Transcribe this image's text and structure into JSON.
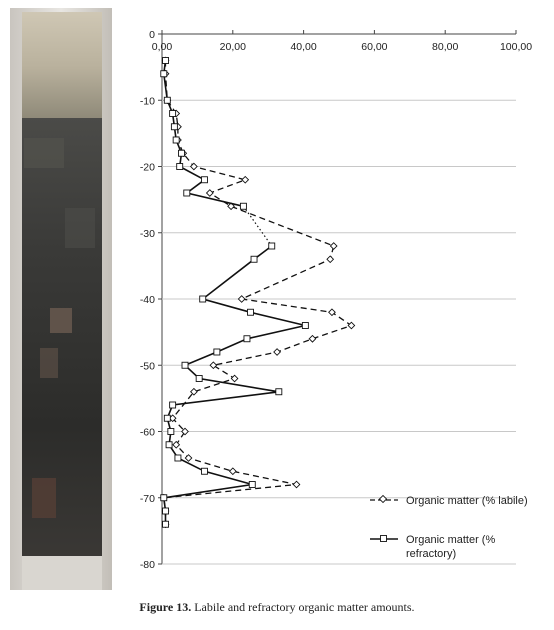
{
  "figure": {
    "caption_label": "Figure 13.",
    "caption_text": " Labile and refractory organic matter amounts."
  },
  "chart_data": {
    "type": "line",
    "title": "",
    "xlabel": "",
    "ylabel": "",
    "x_axis_position": "top",
    "xlim": [
      0,
      100
    ],
    "ylim": [
      -80,
      0
    ],
    "x_ticks": [
      "0,00",
      "20,00",
      "40,00",
      "60,00",
      "80,00",
      "100,00"
    ],
    "y_ticks": [
      "0",
      "-10",
      "-20",
      "-30",
      "-40",
      "-50",
      "-60",
      "-70",
      "-80"
    ],
    "grid": "horizontal",
    "legend_position": "right-bottom",
    "series": [
      {
        "name": "Organic matter (% labile)",
        "line_style": "dashed",
        "marker": "diamond",
        "points": [
          [
            1,
            -4
          ],
          [
            1,
            -6
          ],
          [
            1.5,
            -10
          ],
          [
            4,
            -12
          ],
          [
            4.5,
            -14
          ],
          [
            4.5,
            -16
          ],
          [
            6,
            -18
          ],
          [
            9,
            -20
          ],
          [
            23.5,
            -22
          ],
          [
            13.5,
            -24
          ],
          [
            19.5,
            -26
          ],
          [
            48.5,
            -32
          ],
          [
            47.5,
            -34
          ],
          [
            22.5,
            -40
          ],
          [
            48,
            -42
          ],
          [
            53.5,
            -44
          ],
          [
            42.5,
            -46
          ],
          [
            32.5,
            -48
          ],
          [
            14.5,
            -50
          ],
          [
            20.5,
            -52
          ],
          [
            9,
            -54
          ],
          [
            3,
            -58
          ],
          [
            6.5,
            -60
          ],
          [
            4,
            -62
          ],
          [
            7.5,
            -64
          ],
          [
            20,
            -66
          ],
          [
            38,
            -68
          ],
          [
            0.5,
            -70
          ],
          [
            1,
            -72
          ],
          [
            1,
            -74
          ]
        ]
      },
      {
        "name": "Organic matter (% refractory)",
        "line_style": "solid",
        "marker": "square",
        "points": [
          [
            1,
            -4
          ],
          [
            0.5,
            -6
          ],
          [
            1.5,
            -10
          ],
          [
            3,
            -12
          ],
          [
            3.5,
            -14
          ],
          [
            4,
            -16
          ],
          [
            5.5,
            -18
          ],
          [
            5,
            -20
          ],
          [
            12,
            -22
          ],
          [
            7,
            -24
          ],
          [
            23,
            -26
          ],
          [
            31,
            -32
          ],
          [
            26,
            -34
          ],
          [
            11.5,
            -40
          ],
          [
            25,
            -42
          ],
          [
            40.5,
            -44
          ],
          [
            24,
            -46
          ],
          [
            15.5,
            -48
          ],
          [
            6.5,
            -50
          ],
          [
            10.5,
            -52
          ],
          [
            33,
            -54
          ],
          [
            3,
            -56
          ],
          [
            1.5,
            -58
          ],
          [
            2.5,
            -60
          ],
          [
            2,
            -62
          ],
          [
            4.5,
            -64
          ],
          [
            12,
            -66
          ],
          [
            25.5,
            -68
          ],
          [
            0.5,
            -70
          ],
          [
            1,
            -72
          ],
          [
            1,
            -74
          ]
        ]
      }
    ],
    "connector": {
      "style": "dotted",
      "from": [
        23,
        -26
      ],
      "to": [
        31,
        -32
      ]
    }
  }
}
